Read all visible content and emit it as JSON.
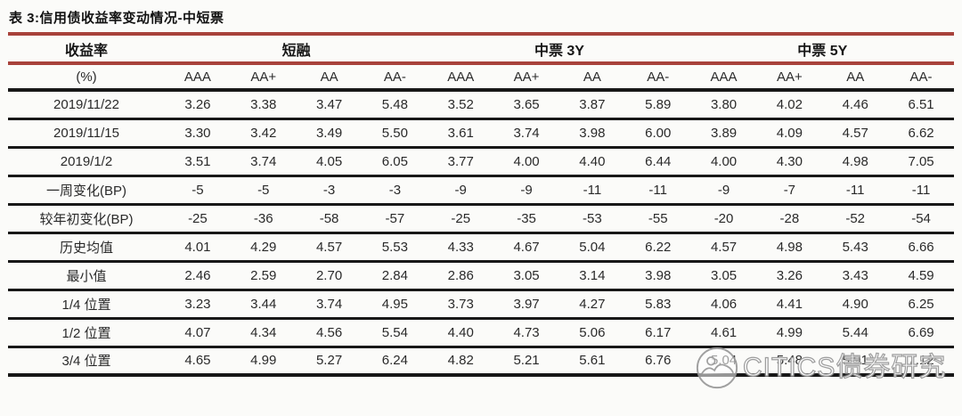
{
  "page": {
    "title": "表 3:信用债收益率变动情况-中短票"
  },
  "colors": {
    "rule_red": "#a8423b",
    "rule_black": "#181818",
    "text": "#2a2a2a",
    "background": "#fbfbf9"
  },
  "watermark": {
    "text": "CITICS债券研究",
    "logo": "citics-circle-logo"
  },
  "table": {
    "header": {
      "col0_top": "收益率",
      "col0_bottom": "(%)",
      "groups": [
        "短融",
        "中票 3Y",
        "中票 5Y"
      ],
      "ratings": [
        "AAA",
        "AA+",
        "AA",
        "AA-",
        "AAA",
        "AA+",
        "AA",
        "AA-",
        "AAA",
        "AA+",
        "AA",
        "AA-"
      ]
    },
    "rows": [
      {
        "label": "2019/11/22",
        "values": [
          "3.26",
          "3.38",
          "3.47",
          "5.48",
          "3.52",
          "3.65",
          "3.87",
          "5.89",
          "3.80",
          "4.02",
          "4.46",
          "6.51"
        ]
      },
      {
        "label": "2019/11/15",
        "values": [
          "3.30",
          "3.42",
          "3.49",
          "5.50",
          "3.61",
          "3.74",
          "3.98",
          "6.00",
          "3.89",
          "4.09",
          "4.57",
          "6.62"
        ]
      },
      {
        "label": "2019/1/2",
        "values": [
          "3.51",
          "3.74",
          "4.05",
          "6.05",
          "3.77",
          "4.00",
          "4.40",
          "6.44",
          "4.00",
          "4.30",
          "4.98",
          "7.05"
        ]
      },
      {
        "label": "一周变化(BP)",
        "values": [
          "-5",
          "-5",
          "-3",
          "-3",
          "-9",
          "-9",
          "-11",
          "-11",
          "-9",
          "-7",
          "-11",
          "-11"
        ]
      },
      {
        "label": "较年初变化(BP)",
        "values": [
          "-25",
          "-36",
          "-58",
          "-57",
          "-25",
          "-35",
          "-53",
          "-55",
          "-20",
          "-28",
          "-52",
          "-54"
        ]
      },
      {
        "label": "历史均值",
        "values": [
          "4.01",
          "4.29",
          "4.57",
          "5.53",
          "4.33",
          "4.67",
          "5.04",
          "6.22",
          "4.57",
          "4.98",
          "5.43",
          "6.66"
        ]
      },
      {
        "label": "最小值",
        "values": [
          "2.46",
          "2.59",
          "2.70",
          "2.84",
          "2.86",
          "3.05",
          "3.14",
          "3.98",
          "3.05",
          "3.26",
          "3.43",
          "4.59"
        ]
      },
      {
        "label": "1/4 位置",
        "values": [
          "3.23",
          "3.44",
          "3.74",
          "4.95",
          "3.73",
          "3.97",
          "4.27",
          "5.83",
          "4.06",
          "4.41",
          "4.90",
          "6.25"
        ]
      },
      {
        "label": "1/2 位置",
        "values": [
          "4.07",
          "4.34",
          "4.56",
          "5.54",
          "4.40",
          "4.73",
          "5.06",
          "6.17",
          "4.61",
          "4.99",
          "5.44",
          "6.69"
        ]
      },
      {
        "label": "3/4 位置",
        "values": [
          "4.65",
          "4.99",
          "5.27",
          "6.24",
          "4.82",
          "5.21",
          "5.61",
          "6.76",
          "5.04",
          "5.48",
          "5.91",
          "7.12"
        ]
      }
    ]
  },
  "chart_data": {
    "type": "table",
    "title": "表 3:信用债收益率变动情况-中短票",
    "column_groups": [
      "短融",
      "中票 3Y",
      "中票 5Y"
    ],
    "columns_per_group": [
      "AAA",
      "AA+",
      "AA",
      "AA-"
    ],
    "unit": "%",
    "row_labels": [
      "2019/11/22",
      "2019/11/15",
      "2019/1/2",
      "一周变化(BP)",
      "较年初变化(BP)",
      "历史均值",
      "最小值",
      "1/4 位置",
      "1/2 位置",
      "3/4 位置"
    ]
  }
}
